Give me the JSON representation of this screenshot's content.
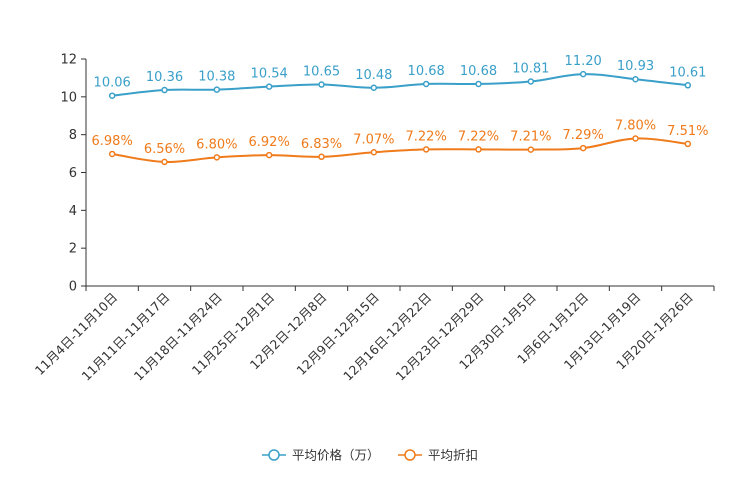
{
  "chart_data": {
    "type": "line",
    "title": "",
    "xlabel": "",
    "ylabel": "",
    "ylim": [
      0,
      12
    ],
    "yticks": [
      0,
      2,
      4,
      6,
      8,
      10,
      12
    ],
    "legend_position": "bottom-center",
    "categories": [
      "11月4日-11月10日",
      "11月11日-11月17日",
      "11月18日-11月24日",
      "11月25日-12月1日",
      "12月2日-12月8日",
      "12月9日-12月15日",
      "12月16日-12月22日",
      "12月23日-12月29日",
      "12月30日-1月5日",
      "1月6日-1月12日",
      "1月13日-1月19日",
      "1月20日-1月26日"
    ],
    "series": [
      {
        "name": "平均价格（万）",
        "color": "#3a9fc9",
        "values": [
          10.06,
          10.36,
          10.38,
          10.54,
          10.65,
          10.48,
          10.68,
          10.68,
          10.81,
          11.2,
          10.93,
          10.61
        ],
        "labels": [
          "10.06",
          "10.36",
          "10.38",
          "10.54",
          "10.65",
          "10.48",
          "10.68",
          "10.68",
          "10.81",
          "11.20",
          "10.93",
          "10.61"
        ]
      },
      {
        "name": "平均折扣",
        "color": "#ef7b1b",
        "values": [
          6.98,
          6.56,
          6.8,
          6.92,
          6.83,
          7.07,
          7.22,
          7.22,
          7.21,
          7.29,
          7.8,
          7.51
        ],
        "labels": [
          "6.98%",
          "6.56%",
          "6.80%",
          "6.92%",
          "6.83%",
          "7.07%",
          "7.22%",
          "7.22%",
          "7.21%",
          "7.29%",
          "7.80%",
          "7.51%"
        ]
      }
    ]
  }
}
